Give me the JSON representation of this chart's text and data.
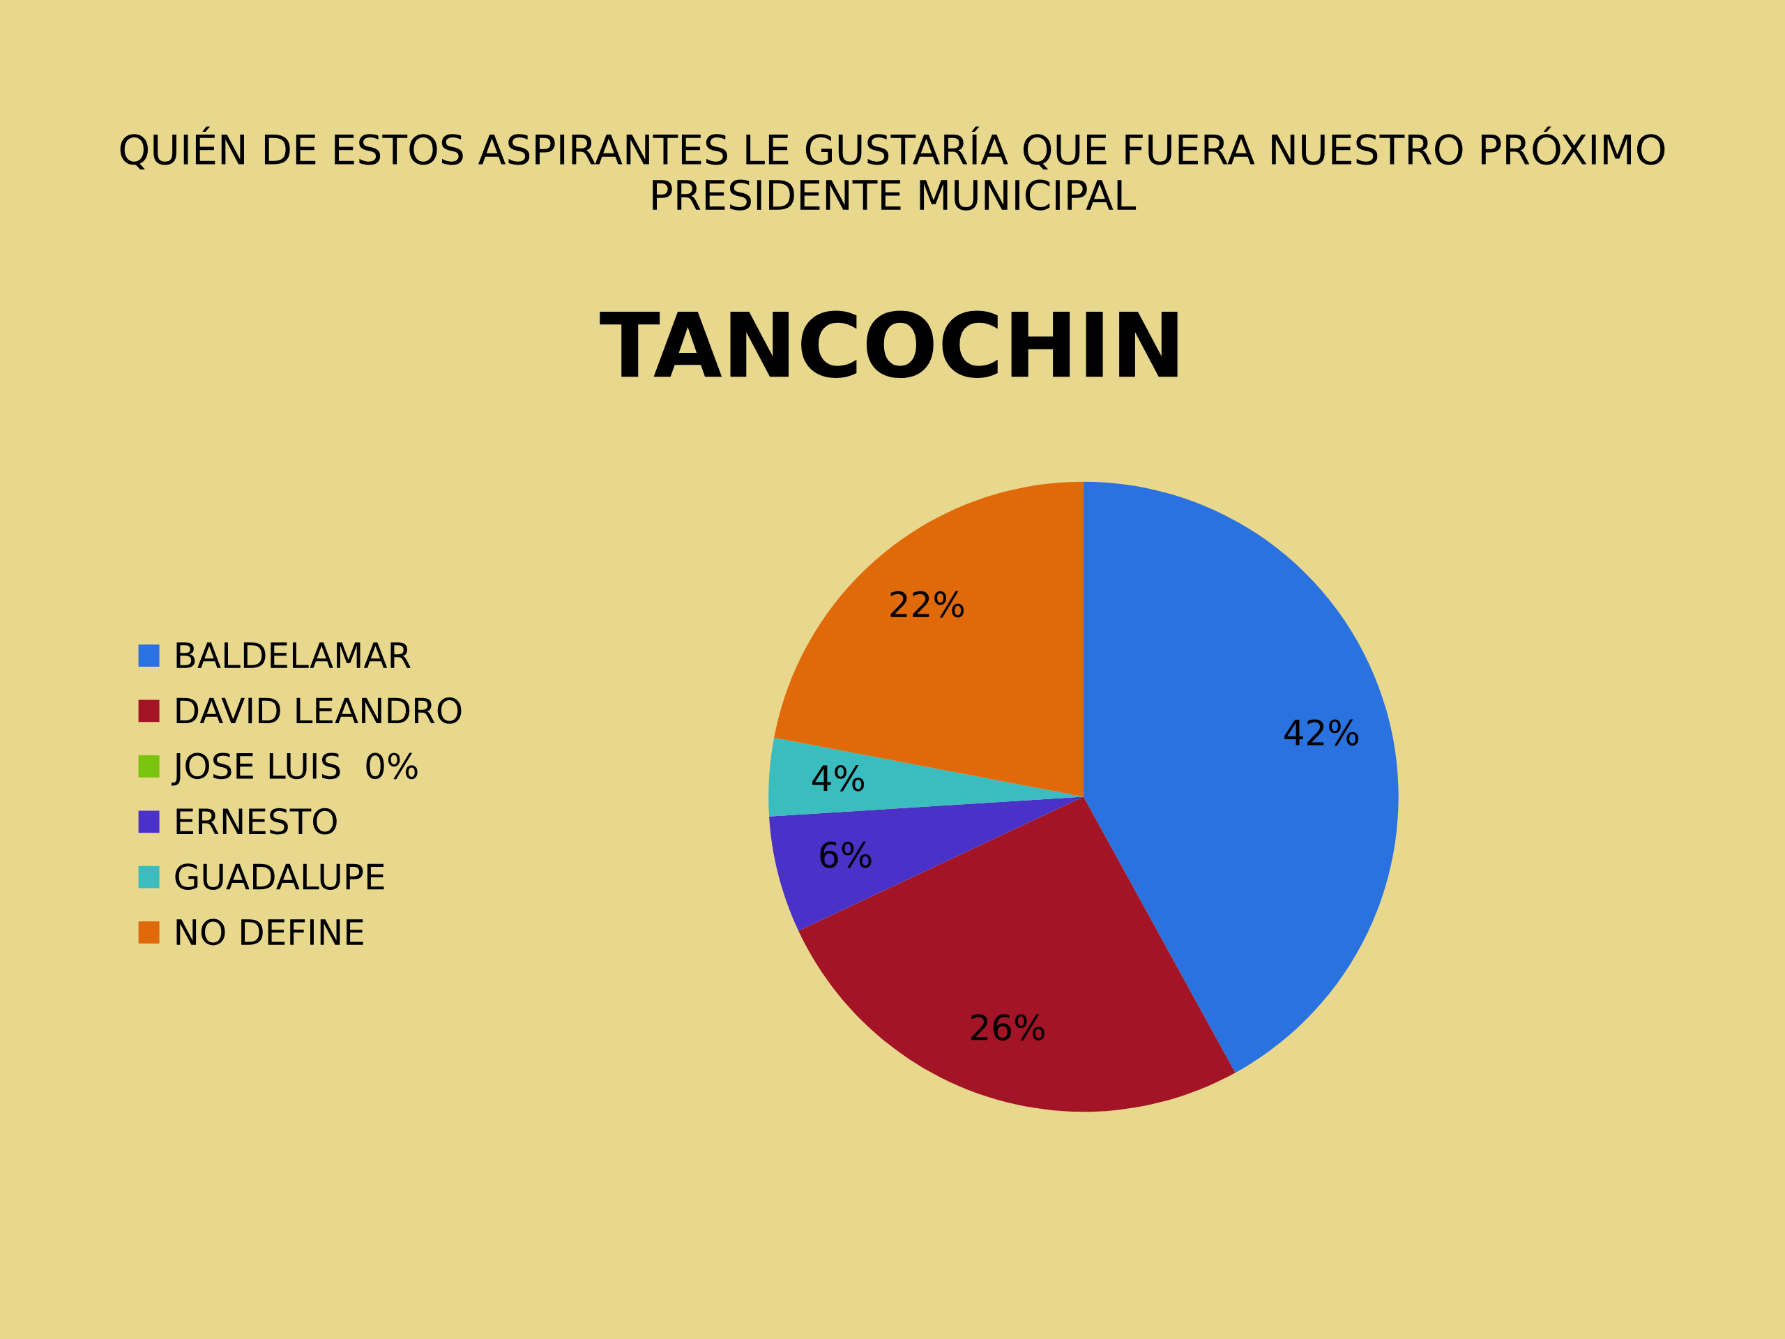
{
  "chart_data": {
    "type": "pie",
    "title": "TANCOCHIN",
    "subtitle": "QUIÉN DE ESTOS ASPIRANTES LE GUSTARÍA QUE FUERA NUESTRO PRÓXIMO PRESIDENTE MUNICIPAL",
    "categories": [
      "BALDELAMAR",
      "DAVID LEANDRO",
      "JOSE LUIS  0%",
      "ERNESTO",
      "GUADALUPE",
      "NO DEFINE"
    ],
    "values": [
      42,
      26,
      0,
      6,
      4,
      22
    ],
    "colors": [
      "#2a72e0",
      "#a31526",
      "#7ac30f",
      "#4a32c8",
      "#3bbcbf",
      "#e06a0a"
    ],
    "value_labels": [
      "42%",
      "26%",
      null,
      "6%",
      "4%",
      "22%"
    ],
    "legend": "left"
  }
}
